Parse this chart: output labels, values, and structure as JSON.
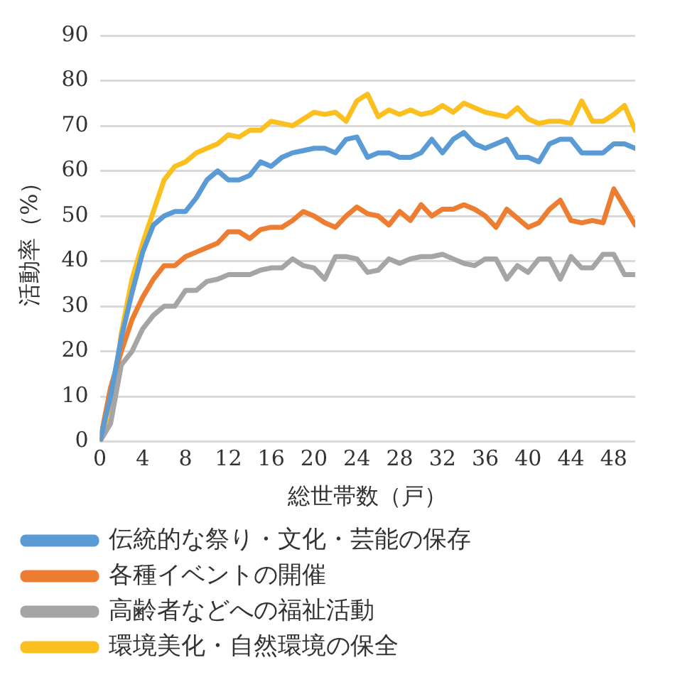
{
  "chart_data": {
    "type": "line",
    "xlabel": "総世帯数（戸）",
    "ylabel": "活動率（%）",
    "x": [
      0,
      1,
      2,
      3,
      4,
      5,
      6,
      7,
      8,
      9,
      10,
      11,
      12,
      13,
      14,
      15,
      16,
      17,
      18,
      19,
      20,
      21,
      22,
      23,
      24,
      25,
      26,
      27,
      28,
      29,
      30,
      31,
      32,
      33,
      34,
      35,
      36,
      37,
      38,
      39,
      40,
      41,
      42,
      43,
      44,
      45,
      46,
      47,
      48,
      49,
      50
    ],
    "xlim": [
      0,
      50
    ],
    "xticks": [
      0,
      4,
      8,
      12,
      16,
      20,
      24,
      28,
      32,
      36,
      40,
      44,
      48
    ],
    "ylim": [
      0,
      90
    ],
    "yticks": [
      0,
      10,
      20,
      30,
      40,
      50,
      60,
      70,
      80,
      90
    ],
    "grid": "y",
    "legend": "bottom",
    "marker": "none",
    "line_style": "solid",
    "series": [
      {
        "name": "伝統的な祭り・文化・芸能の保存",
        "color": "#5b9bd5",
        "values": [
          0,
          10,
          23,
          33,
          42,
          48,
          50,
          51,
          51,
          54,
          58,
          60,
          58,
          58,
          59,
          62,
          61,
          63,
          64,
          64.5,
          65,
          65,
          64,
          67,
          67.5,
          63,
          64,
          64,
          63,
          63,
          64,
          67,
          64,
          67,
          68.5,
          66,
          65,
          66,
          67,
          63,
          63,
          62,
          66,
          67,
          67,
          64,
          64,
          64,
          66,
          66,
          65
        ]
      },
      {
        "name": "各種イベントの開催",
        "color": "#ed7d31",
        "values": [
          0,
          12,
          20,
          27,
          32,
          36,
          39,
          39,
          41,
          42,
          43,
          44,
          46.5,
          46.5,
          45,
          47,
          47.5,
          47.5,
          49,
          51,
          50,
          48.5,
          47.5,
          50,
          52,
          50.5,
          50,
          48,
          51,
          49,
          52.5,
          50,
          51.5,
          51.5,
          52.5,
          51.5,
          50,
          47.5,
          51.5,
          49.5,
          47.5,
          48.5,
          51.5,
          53.5,
          49,
          48.5,
          49,
          48.5,
          56,
          52,
          48
        ]
      },
      {
        "name": "高齢者などへの福祉活動",
        "color": "#a5a5a5",
        "values": [
          0,
          4,
          17,
          20,
          25,
          28,
          30,
          30,
          33.5,
          33.5,
          35.5,
          36,
          37,
          37,
          37,
          38,
          38.5,
          38.5,
          40.5,
          39,
          38.5,
          36,
          41,
          41,
          40.5,
          37.5,
          38,
          40.5,
          39.5,
          40.5,
          41,
          41,
          41.5,
          40.5,
          39.5,
          39,
          40.5,
          40.5,
          36,
          39,
          37.5,
          40.5,
          40.5,
          36,
          41,
          38.5,
          38.5,
          41.5,
          41.5,
          37,
          37
        ]
      },
      {
        "name": "環境美化・自然環境の保全",
        "color": "#fbbf1f",
        "values": [
          0,
          5,
          24,
          36,
          44,
          51,
          58,
          61,
          62,
          64,
          65,
          66,
          68,
          67.5,
          69,
          69,
          71,
          70.5,
          70,
          71.5,
          73,
          72.5,
          73,
          71,
          75.5,
          77,
          72,
          73.5,
          72.5,
          73.5,
          72.5,
          73,
          74.5,
          73,
          75,
          74,
          73,
          72.5,
          72,
          74,
          71.5,
          70.5,
          71,
          71,
          70.5,
          75.5,
          71,
          71,
          72.5,
          74.5,
          69
        ]
      }
    ]
  }
}
